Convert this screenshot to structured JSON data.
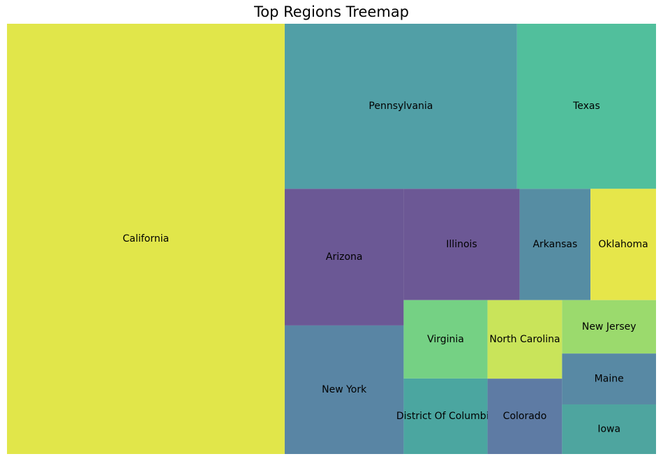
{
  "chart_data": {
    "type": "treemap",
    "title": "Top Regions Treemap",
    "items": [
      {
        "label": "California",
        "value": 1000,
        "color": "#e1e64a"
      },
      {
        "label": "Pennsylvania",
        "value": 321,
        "color": "#519fa6"
      },
      {
        "label": "Texas",
        "value": 192,
        "color": "#51bf9c"
      },
      {
        "label": "Arizona",
        "value": 136,
        "color": "#6b5895"
      },
      {
        "label": "New York",
        "value": 128,
        "color": "#5985a4"
      },
      {
        "label": "Illinois",
        "value": 108,
        "color": "#6c5895"
      },
      {
        "label": "Arkansas",
        "value": 66,
        "color": "#568da3"
      },
      {
        "label": "Oklahoma",
        "value": 61,
        "color": "#e6e64a"
      },
      {
        "label": "Virginia",
        "value": 55,
        "color": "#75d184"
      },
      {
        "label": "District Of Columbia",
        "value": 53,
        "color": "#4ba6a0"
      },
      {
        "label": "North Carolina",
        "value": 49,
        "color": "#c9e45a"
      },
      {
        "label": "Colorado",
        "value": 47,
        "color": "#5e7ba4"
      },
      {
        "label": "New Jersey",
        "value": 42,
        "color": "#9bda6d"
      },
      {
        "label": "Maine",
        "value": 40,
        "color": "#5889a4"
      },
      {
        "label": "Iowa",
        "value": 39,
        "color": "#4ea59f"
      }
    ]
  }
}
